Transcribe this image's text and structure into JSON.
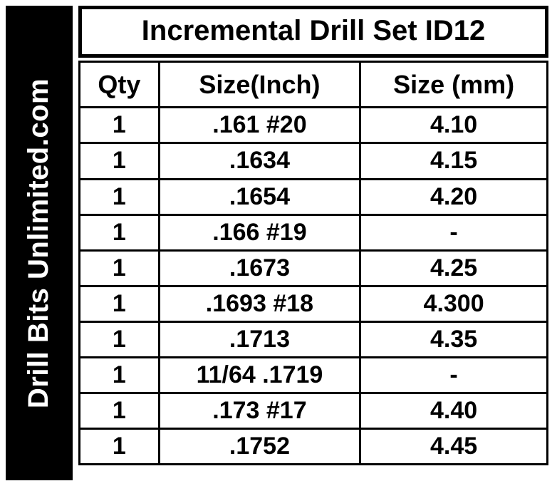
{
  "sidebar": {
    "text": "Drill Bits Unlimited.com",
    "bg_color": "#000000",
    "text_color": "#ffffff"
  },
  "table": {
    "title": "Incremental Drill Set ID12",
    "columns": [
      "Qty",
      "Size(Inch)",
      "Size (mm)"
    ],
    "rows": [
      [
        "1",
        ".161 #20",
        "4.10"
      ],
      [
        "1",
        ".1634",
        "4.15"
      ],
      [
        "1",
        ".1654",
        "4.20"
      ],
      [
        "1",
        ".166 #19",
        "-"
      ],
      [
        "1",
        ".1673",
        "4.25"
      ],
      [
        "1",
        ".1693 #18",
        "4.300"
      ],
      [
        "1",
        ".1713",
        "4.35"
      ],
      [
        "1",
        "11/64 .1719",
        "-"
      ],
      [
        "1",
        ".173 #17",
        "4.40"
      ],
      [
        "1",
        ".1752",
        "4.45"
      ]
    ],
    "border_color": "#000000",
    "background_color": "#ffffff",
    "text_color": "#000000",
    "title_fontsize": 40,
    "header_fontsize": 36,
    "cell_fontsize": 34,
    "col_widths_pct": [
      17,
      43,
      40
    ]
  }
}
